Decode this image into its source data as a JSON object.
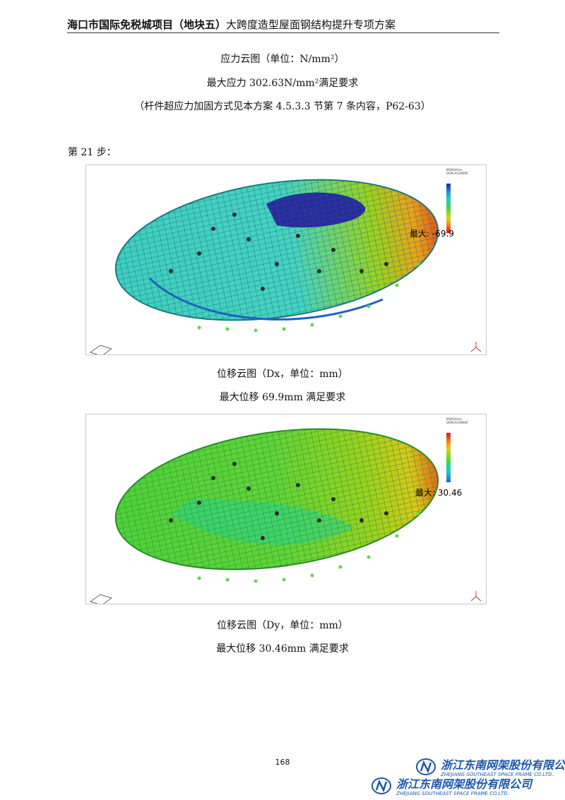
{
  "header": {
    "bold_part": "海口市国际免税城项目（地块五）",
    "rest": "大跨度造型屋面钢结构提升专项方案"
  },
  "top_captions": {
    "line1": "应力云图（单位：N/mm²）",
    "line2": "最大应力 302.63N/mm²满足要求",
    "line3": "（杆件超应力加固方式见本方案 4.5.3.3 节第 7 条内容，P62-63）"
  },
  "step_label": "第 21 步：",
  "figures": [
    {
      "max_label": "最大: -69.9",
      "caption": "位移云图（Dx，单位：mm）",
      "result": "最大位移 69.9mm 满足要求",
      "legend_colors": [
        "#1f2fa8",
        "#1f5fd0",
        "#1f9fd8",
        "#22c8c8",
        "#2ad28a",
        "#4fd23a",
        "#9ad21f",
        "#d8d21a",
        "#f0a01a",
        "#e85a1a",
        "#d81a1a"
      ],
      "dominant_color": "#3fcfc0",
      "accent_region": "#2a2aa0"
    },
    {
      "max_label": "最大: 30.46",
      "caption": "位移云图（Dy，单位：mm）",
      "result": "最大位移 30.46mm 满足要求",
      "legend_colors": [
        "#d81a1a",
        "#e85a1a",
        "#f0a01a",
        "#d8d21a",
        "#9ad21f",
        "#4fd23a",
        "#2ad28a",
        "#22c8c8",
        "#1f9fd8",
        "#1f5fd0"
      ],
      "dominant_color": "#5fd43a",
      "accent_region": "#d8c81a"
    }
  ],
  "page_number": "168",
  "company": {
    "cn": "浙江东南网架股份有限公司",
    "en": "ZHEJIANG SOUTHEAST SPACE FRAME CO.LTD."
  }
}
